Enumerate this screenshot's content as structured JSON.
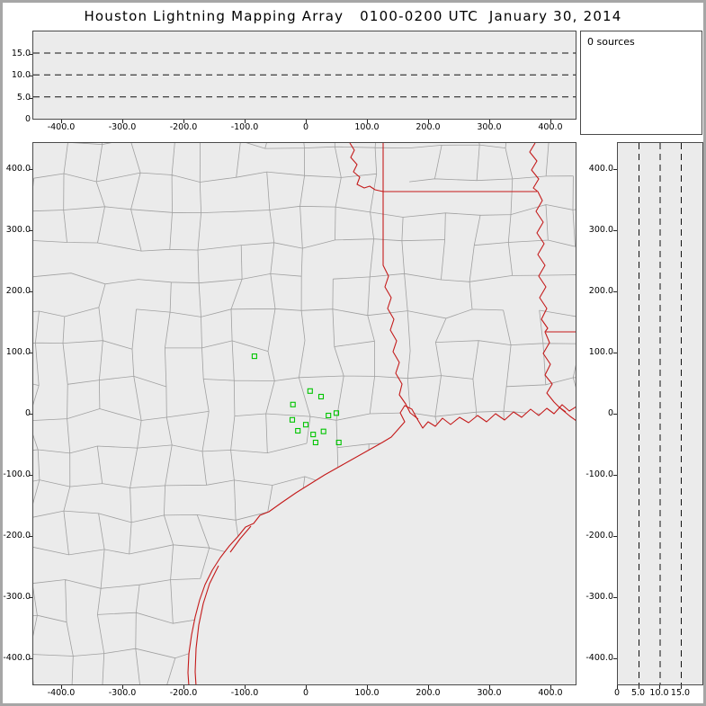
{
  "title": "Houston Lightning Mapping Array   0100-0200 UTC  January 30, 2014",
  "sources_panel": {
    "label": "0 sources",
    "count": 0
  },
  "colors": {
    "page_bg": "#ffffff",
    "frame_border": "#a6a6a6",
    "panel_bg": "#ebebeb",
    "panel_border": "#4a4a4a",
    "gridline": "#111111",
    "county_line": "#a0a0a0",
    "state_line": "#c41a1a",
    "station": "#00c400",
    "tick_text": "#000000"
  },
  "chart_data": [
    {
      "type": "scatter",
      "name": "altitude-vs-east-west",
      "description": "Top panel: lightning source altitude (km) vs east-west distance (km); empty because 0 sources were detected in this hour",
      "xlim_km": [
        -447,
        443
      ],
      "ylim_km": [
        0,
        20
      ],
      "grid_style": "dashed horizontal lines",
      "x_ticks": [
        {
          "v": -400,
          "label": "-400.0"
        },
        {
          "v": -300,
          "label": "-300.0"
        },
        {
          "v": -200,
          "label": "-200.0"
        },
        {
          "v": -100,
          "label": "-100.0"
        },
        {
          "v": 0,
          "label": "0"
        },
        {
          "v": 100,
          "label": "100.0"
        },
        {
          "v": 200,
          "label": "200.0"
        },
        {
          "v": 300,
          "label": "300.0"
        },
        {
          "v": 400,
          "label": "400.0"
        }
      ],
      "y_gridlines": [
        {
          "v": 15,
          "label": "15.0"
        },
        {
          "v": 10,
          "label": "10.0"
        },
        {
          "v": 5,
          "label": "5.0"
        }
      ],
      "y_zero_label": "0",
      "series": [
        {
          "name": "lightning-sources",
          "points": []
        }
      ]
    },
    {
      "type": "scatter",
      "name": "plan-view-map",
      "description": "Main panel: plan view centered near Houston with county boundaries (gray), state borders / coastline / rivers (red) and HLMA station locations (green squares); 0 lightning sources plotted",
      "xlim_km": [
        -447,
        443
      ],
      "ylim_km": [
        -444,
        444
      ],
      "map_layers": [
        "county-boundaries",
        "state-boundaries",
        "gulf-coastline",
        "rivers",
        "barrier-islands"
      ],
      "x_ticks": [
        {
          "v": -400,
          "label": "-400.0"
        },
        {
          "v": -300,
          "label": "-300.0"
        },
        {
          "v": -200,
          "label": "-200.0"
        },
        {
          "v": -100,
          "label": "-100.0"
        },
        {
          "v": 0,
          "label": "0"
        },
        {
          "v": 100,
          "label": "100.0"
        },
        {
          "v": 200,
          "label": "200.0"
        },
        {
          "v": 300,
          "label": "300.0"
        },
        {
          "v": 400,
          "label": "400.0"
        }
      ],
      "y_ticks": [
        {
          "v": 400,
          "label": "400.0"
        },
        {
          "v": 300,
          "label": "300.0"
        },
        {
          "v": 200,
          "label": "200.0"
        },
        {
          "v": 100,
          "label": "100.0"
        },
        {
          "v": 0,
          "label": "0"
        },
        {
          "v": -100,
          "label": "-100.0"
        },
        {
          "v": -200,
          "label": "-200.0"
        },
        {
          "v": -300,
          "label": "-300.0"
        },
        {
          "v": -400,
          "label": "-400.0"
        }
      ],
      "stations": [
        [
          -84,
          94
        ],
        [
          7,
          37
        ],
        [
          25,
          28
        ],
        [
          -21,
          15
        ],
        [
          50,
          1
        ],
        [
          37,
          -3
        ],
        [
          -22,
          -10
        ],
        [
          0,
          -18
        ],
        [
          -13,
          -28
        ],
        [
          29,
          -29
        ],
        [
          12,
          -34
        ],
        [
          16,
          -47
        ],
        [
          54,
          -47
        ]
      ],
      "series": [
        {
          "name": "lightning-sources",
          "points": []
        }
      ]
    },
    {
      "type": "scatter",
      "name": "north-south-vs-altitude",
      "description": "Right panel: north-south distance (km) vs lightning source altitude (km); empty because 0 sources were detected",
      "xlim_km": [
        0,
        20
      ],
      "ylim_km": [
        -444,
        444
      ],
      "grid_style": "dashed vertical lines",
      "x_ticks": [
        {
          "v": 0,
          "label": "0"
        },
        {
          "v": 5,
          "label": "5.0"
        },
        {
          "v": 10,
          "label": "10.0"
        },
        {
          "v": 15,
          "label": "15.0"
        }
      ],
      "x_gridlines": [
        5,
        10,
        15
      ],
      "y_ticks": [
        {
          "v": 400,
          "label": "400.0"
        },
        {
          "v": 300,
          "label": "300.0"
        },
        {
          "v": 200,
          "label": "200.0"
        },
        {
          "v": 100,
          "label": "100.0"
        },
        {
          "v": 0,
          "label": "0"
        },
        {
          "v": -100,
          "label": "-100.0"
        },
        {
          "v": -200,
          "label": "-200.0"
        },
        {
          "v": -300,
          "label": "-300.0"
        },
        {
          "v": -400,
          "label": "-400.0"
        }
      ],
      "series": [
        {
          "name": "lightning-sources",
          "points": []
        }
      ]
    }
  ]
}
